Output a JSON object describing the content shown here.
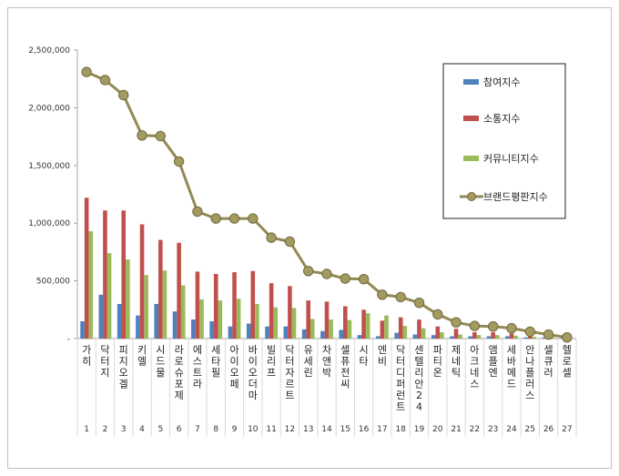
{
  "chart_data": {
    "type": "bar",
    "title": "",
    "xlabel": "",
    "ylabel": "",
    "ylim": [
      0,
      2500000
    ],
    "yticks": [
      0,
      500000,
      1000000,
      1500000,
      2000000,
      2500000
    ],
    "ytick_labels": [
      "-",
      "500,000",
      "1,000,000",
      "1,500,000",
      "2,000,000",
      "2,500,000"
    ],
    "grid": false,
    "legend_position": "top-right",
    "categories": [
      "가히",
      "닥터지",
      "피지오겔",
      "키엘",
      "시드물",
      "라로슈포제",
      "에스트라",
      "세타필",
      "아이오페",
      "바이오더마",
      "빌리프",
      "닥터자르트",
      "유세린",
      "차앤박",
      "셀퓨전씨",
      "시타",
      "엔비",
      "닥터디퍼런트",
      "센텔리안24",
      "파티온",
      "제네틱",
      "아크네스",
      "앰플엔",
      "세바메드",
      "안나플러스",
      "셀큐러",
      "헬로셀"
    ],
    "ranks": [
      "1",
      "2",
      "3",
      "4",
      "5",
      "6",
      "7",
      "8",
      "9",
      "10",
      "11",
      "12",
      "13",
      "14",
      "15",
      "16",
      "17",
      "18",
      "19",
      "20",
      "21",
      "22",
      "23",
      "24",
      "25",
      "26",
      "27"
    ],
    "series": [
      {
        "name": "참여지수",
        "kind": "bar",
        "color": "#4f81bd",
        "values": [
          150000,
          380000,
          300000,
          200000,
          300000,
          235000,
          165000,
          150000,
          105000,
          130000,
          105000,
          105000,
          80000,
          65000,
          75000,
          30000,
          20000,
          50000,
          35000,
          30000,
          20000,
          20000,
          20000,
          20000,
          10000,
          10000,
          5000
        ]
      },
      {
        "name": "소통지수",
        "kind": "bar",
        "color": "#c0504d",
        "values": [
          1220000,
          1110000,
          1110000,
          990000,
          855000,
          830000,
          580000,
          560000,
          575000,
          585000,
          480000,
          455000,
          330000,
          320000,
          280000,
          250000,
          155000,
          185000,
          165000,
          105000,
          85000,
          55000,
          55000,
          45000,
          25000,
          20000,
          10000
        ]
      },
      {
        "name": "커뮤니티지수",
        "kind": "bar",
        "color": "#9bbb59",
        "values": [
          930000,
          740000,
          685000,
          550000,
          590000,
          460000,
          340000,
          330000,
          345000,
          300000,
          270000,
          265000,
          170000,
          165000,
          160000,
          220000,
          200000,
          110000,
          90000,
          55000,
          35000,
          30000,
          30000,
          25000,
          15000,
          10000,
          5000
        ]
      },
      {
        "name": "브랜드평판지수",
        "kind": "line",
        "color": "#938953",
        "values": [
          2310000,
          2240000,
          2110000,
          1760000,
          1755000,
          1535000,
          1100000,
          1040000,
          1040000,
          1040000,
          875000,
          840000,
          585000,
          560000,
          520000,
          515000,
          380000,
          360000,
          310000,
          210000,
          140000,
          110000,
          105000,
          90000,
          60000,
          35000,
          10000
        ]
      }
    ]
  }
}
